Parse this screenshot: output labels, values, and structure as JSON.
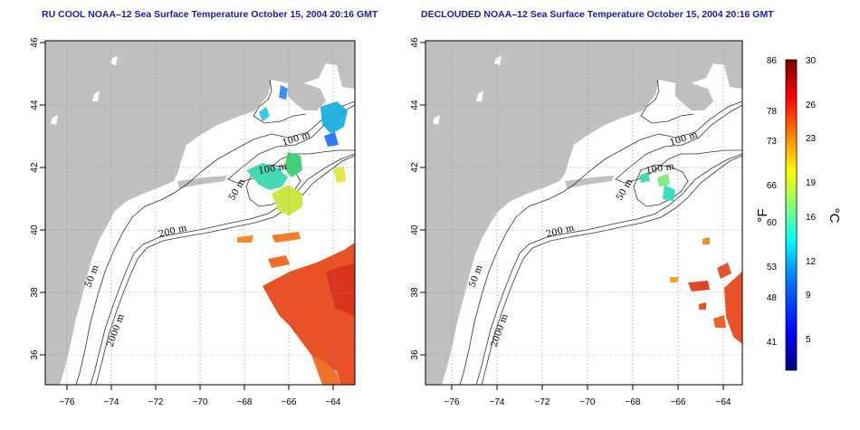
{
  "panels": [
    {
      "id": "ru-cool",
      "title": "RU COOL NOAA–12 Sea Surface Temperature October 15, 2004 20:16 GMT"
    },
    {
      "id": "declouded",
      "title": "DECLOUDED NOAA–12 Sea Surface Temperature October 15, 2004 20:16 GMT"
    }
  ],
  "map": {
    "lon_range": [
      -77,
      -63
    ],
    "lat_range": [
      35,
      46
    ],
    "lon_ticks": [
      "−76",
      "−74",
      "−72",
      "−70",
      "−68",
      "−66",
      "−64"
    ],
    "lat_ticks": [
      "36",
      "38",
      "40",
      "42",
      "44",
      "46"
    ],
    "grid": "dotted",
    "contour_labels": [
      "100 m",
      "100 m",
      "50 m",
      "200 m",
      "50 m",
      "2000 m"
    ],
    "colors": {
      "land": "#c0c0c0",
      "ocean": "#ffffff",
      "contour": "#333333",
      "warm": "#e8481c"
    }
  },
  "colorbar": {
    "fahrenheit_label": "°F",
    "celsius_label": "°C",
    "fahrenheit_ticks": [
      "86",
      "78",
      "73",
      "66",
      "60",
      "53",
      "48",
      "41"
    ],
    "celsius_ticks": [
      "30",
      "26",
      "23",
      "19",
      "16",
      "12",
      "9",
      "5"
    ],
    "range_c": [
      2,
      30
    ],
    "colors": [
      "#00007f",
      "#0000ff",
      "#007fff",
      "#00ffff",
      "#7fff7f",
      "#ffff00",
      "#ff7f00",
      "#ff0000",
      "#7f0000"
    ]
  }
}
